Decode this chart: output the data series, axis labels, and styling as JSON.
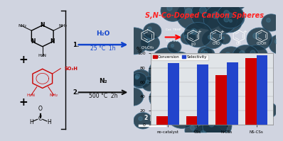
{
  "title": "S,N-Co-Doped Carbon Spheres",
  "categories": [
    "no-catalyst",
    "CSs",
    "N-CSs",
    "NS-CSs"
  ],
  "conversion": [
    12,
    12,
    70,
    94
  ],
  "selectivity": [
    87,
    85,
    88,
    97
  ],
  "bar_color_conversion": "#cc0000",
  "bar_color_selectivity": "#2244cc",
  "ylabel": "%",
  "ylim": [
    0,
    100
  ],
  "yticks": [
    0,
    20,
    40,
    60,
    80,
    100
  ],
  "legend_conversion": "Conversion",
  "legend_selectivity": "Selectivity",
  "bg_dark": "#0d1f2d",
  "sphere_face": "#1a3545",
  "sphere_edge": "#3a6a8a",
  "left_bg": "#d0d4e0",
  "scale_bar_text": "2 μm",
  "title_color": "#ff2222",
  "step1_color": "#1144cc",
  "step2_color": "#111111"
}
